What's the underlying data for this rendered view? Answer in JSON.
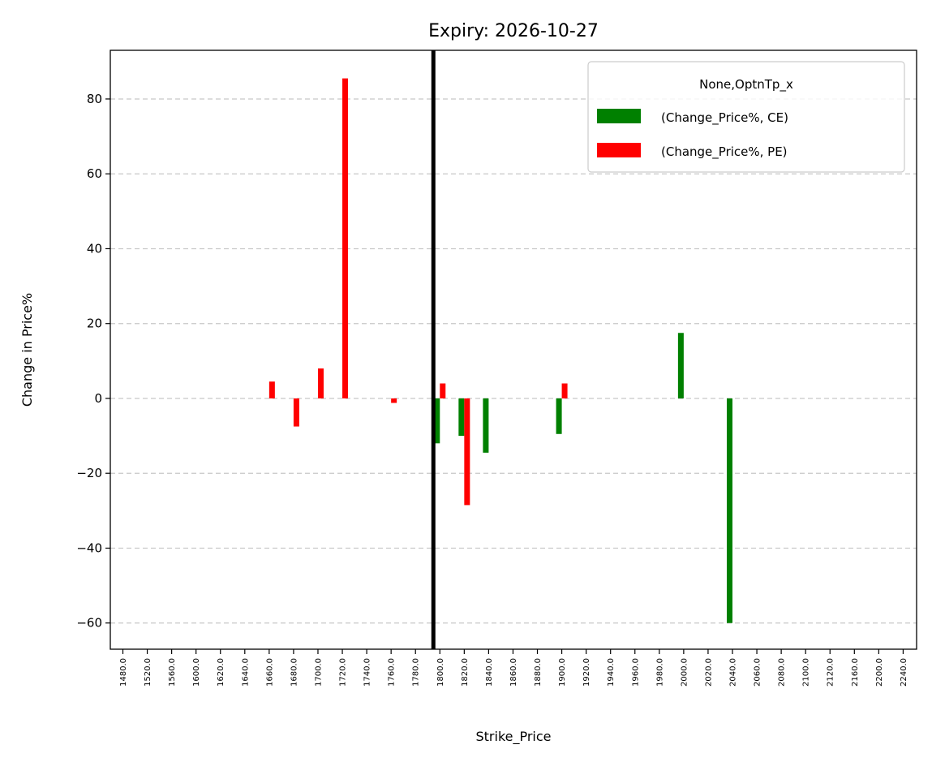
{
  "chart_data": {
    "type": "bar",
    "title": "Expiry: 2026-10-27",
    "xlabel": "Strike_Price",
    "ylabel": "Change in Price%",
    "ylim": [
      -67,
      93
    ],
    "yticks": [
      -60,
      -40,
      -20,
      0,
      20,
      40,
      60,
      80
    ],
    "ytick_labels": [
      "−60",
      "−40",
      "−20",
      "0",
      "20",
      "40",
      "60",
      "80"
    ],
    "categories": [
      "1480.0",
      "1520.0",
      "1560.0",
      "1600.0",
      "1620.0",
      "1640.0",
      "1660.0",
      "1680.0",
      "1700.0",
      "1720.0",
      "1740.0",
      "1760.0",
      "1780.0",
      "1800.0",
      "1820.0",
      "1840.0",
      "1860.0",
      "1880.0",
      "1900.0",
      "1920.0",
      "1940.0",
      "1960.0",
      "1980.0",
      "2000.0",
      "2020.0",
      "2040.0",
      "2060.0",
      "2080.0",
      "2100.0",
      "2120.0",
      "2160.0",
      "2200.0",
      "2240.0"
    ],
    "series": [
      {
        "name": "(Change_Price%, CE)",
        "color": "#008000",
        "values": [
          null,
          null,
          null,
          null,
          null,
          null,
          null,
          null,
          null,
          null,
          null,
          null,
          null,
          -12,
          -10,
          -14.5,
          null,
          null,
          -9.5,
          null,
          null,
          null,
          null,
          17.5,
          null,
          -60,
          null,
          null,
          null,
          null,
          null,
          null,
          null
        ]
      },
      {
        "name": "(Change_Price%, PE)",
        "color": "#ff0000",
        "values": [
          null,
          null,
          null,
          null,
          null,
          null,
          4.5,
          -7.5,
          8,
          85.5,
          null,
          -1.2,
          null,
          4,
          -28.5,
          null,
          null,
          null,
          4,
          null,
          null,
          null,
          null,
          null,
          null,
          null,
          null,
          null,
          null,
          null,
          null,
          null,
          null
        ]
      }
    ],
    "vline_category": "1800.0",
    "grid": "y-dashed",
    "legend": {
      "title": "None,OptnTp_x",
      "placement": "top-right"
    }
  }
}
